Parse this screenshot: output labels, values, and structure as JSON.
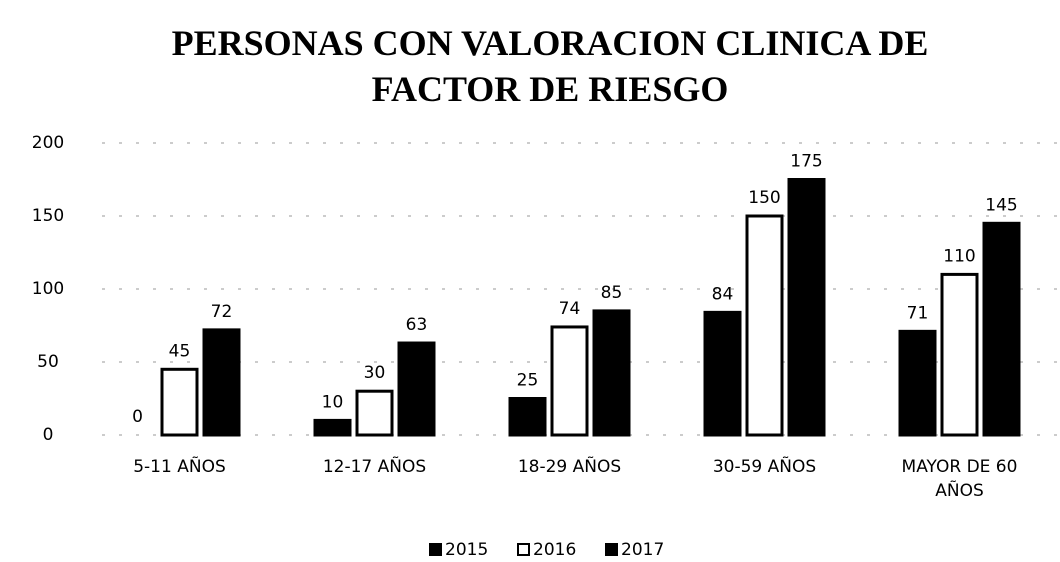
{
  "chart_data": {
    "type": "bar",
    "title": "PERSONAS CON VALORACION CLINICA DE FACTOR DE RIESGO",
    "categories": [
      "5-11 AÑOS",
      "12-17 AÑOS",
      "18-29 AÑOS",
      "30-59 AÑOS",
      "MAYOR DE 60 AÑOS"
    ],
    "series": [
      {
        "name": "2015",
        "color": "#000000",
        "values": [
          0,
          10,
          25,
          84,
          71
        ]
      },
      {
        "name": "2016",
        "color": "#ffffff",
        "values": [
          45,
          30,
          74,
          150,
          110
        ]
      },
      {
        "name": "2017",
        "color": "#000000",
        "values": [
          72,
          63,
          85,
          175,
          145
        ]
      }
    ],
    "ylim": [
      0,
      200
    ],
    "yticks": [
      0,
      50,
      100,
      150,
      200
    ],
    "grid": true,
    "legend": "bottom"
  }
}
